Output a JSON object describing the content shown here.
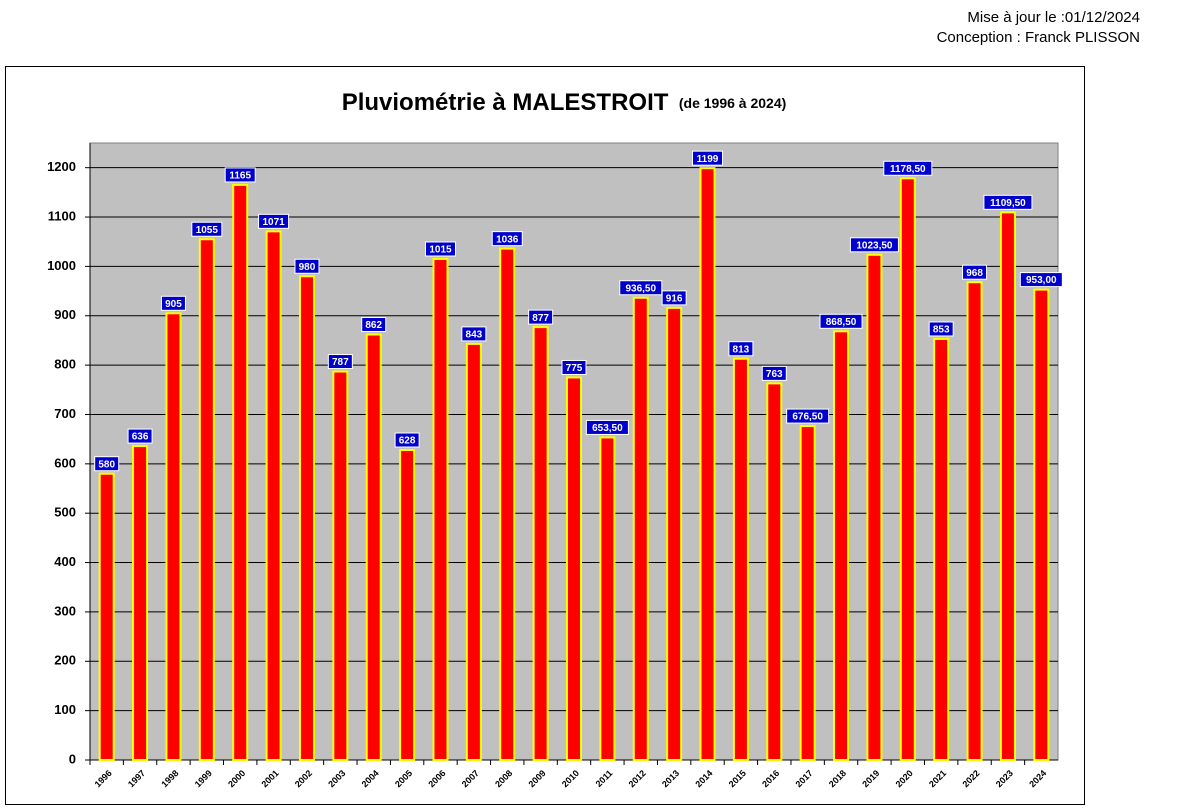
{
  "header": {
    "updated": "Mise à jour le :01/12/2024",
    "author": "Conception : Franck PLISSON"
  },
  "chart_data": {
    "type": "bar",
    "title": "Pluviométrie à MALESTROIT",
    "subtitle": "(de 1996 à 2024)",
    "categories": [
      "1996",
      "1997",
      "1998",
      "1999",
      "2000",
      "2001",
      "2002",
      "2003",
      "2004",
      "2005",
      "2006",
      "2007",
      "2008",
      "2009",
      "2010",
      "2011",
      "2012",
      "2013",
      "2014",
      "2015",
      "2016",
      "2017",
      "2018",
      "2019",
      "2020",
      "2021",
      "2022",
      "2023",
      "2024"
    ],
    "values": [
      580,
      636,
      905,
      1055,
      1165,
      1071,
      980,
      787,
      862,
      628,
      1015,
      843,
      1036,
      877,
      775,
      653.5,
      936.5,
      916,
      1199,
      813,
      763,
      676.5,
      868.5,
      1023.5,
      1178.5,
      853,
      968,
      1109.5,
      953
    ],
    "value_labels": [
      "580",
      "636",
      "905",
      "1055",
      "1165",
      "1071",
      "980",
      "787",
      "862",
      "628",
      "1015",
      "843",
      "1036",
      "877",
      "775",
      "653,50",
      "936,50",
      "916",
      "1199",
      "813",
      "763",
      "676,50",
      "868,50",
      "1023,50",
      "1178,50",
      "853",
      "968",
      "1109,50",
      "953,00"
    ],
    "color": "#ff0000",
    "edge_color": "#ffff00",
    "label_color": "#0000cc",
    "plot_background": "#c0c0c0",
    "ylim": [
      0,
      1250
    ],
    "yticks": [
      0,
      100,
      200,
      300,
      400,
      500,
      600,
      700,
      800,
      900,
      1000,
      1100,
      1200
    ],
    "grid": true
  }
}
